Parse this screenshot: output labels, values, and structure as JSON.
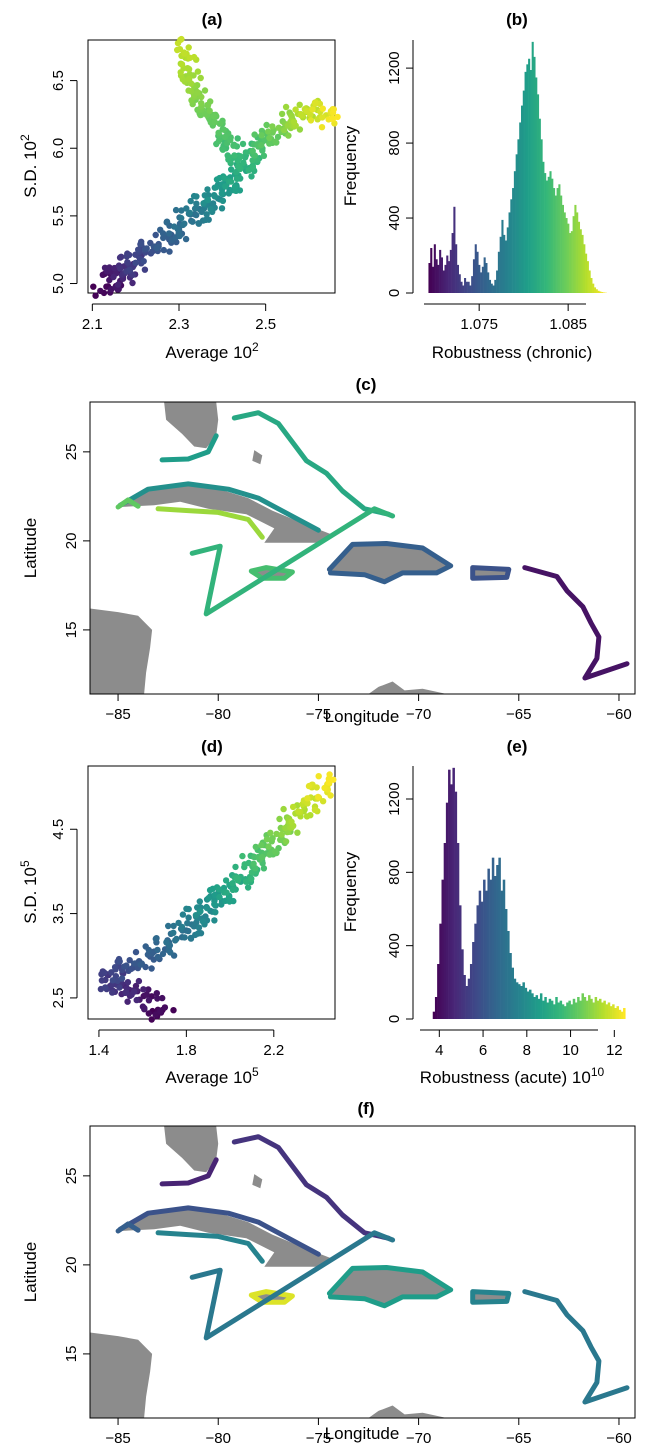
{
  "chart_data": [
    {
      "panel": "(a)",
      "type": "scatter",
      "title": "(a)",
      "xlabel": "Average 10",
      "xlabel_exp": "2",
      "ylabel": "S.D. 10",
      "ylabel_exp": "2",
      "xlim": [
        2.09,
        2.66
      ],
      "ylim": [
        4.93,
        6.8
      ],
      "xticks": [
        "2.1",
        "2.3",
        "2.5"
      ],
      "xtick_values": [
        2.1,
        2.3,
        2.5
      ],
      "yticks": [
        "5.0",
        "5.5",
        "6.0",
        "6.5"
      ],
      "ytick_values": [
        5.0,
        5.5,
        6.0,
        6.5
      ],
      "colormap": "viridis",
      "path": [
        [
          2.13,
          4.98
        ],
        [
          2.16,
          5.05
        ],
        [
          2.2,
          5.15
        ],
        [
          2.26,
          5.3
        ],
        [
          2.31,
          5.45
        ],
        [
          2.36,
          5.58
        ],
        [
          2.41,
          5.72
        ],
        [
          2.45,
          5.88
        ],
        [
          2.49,
          6.05
        ],
        [
          2.55,
          6.18
        ],
        [
          2.6,
          6.3
        ],
        [
          2.65,
          6.2
        ]
      ],
      "branch": [
        [
          2.44,
          5.9
        ],
        [
          2.4,
          6.1
        ],
        [
          2.36,
          6.3
        ],
        [
          2.33,
          6.5
        ],
        [
          2.31,
          6.78
        ]
      ],
      "color_range": [
        0.0,
        1.0
      ]
    },
    {
      "panel": "(b)",
      "type": "bar",
      "title": "(b)",
      "xlabel": "Robustness (chronic)",
      "ylabel": "Frequency",
      "xlim": [
        1.0688,
        1.0924
      ],
      "ylim": [
        0,
        1350
      ],
      "xticks": [
        "1.075",
        "1.085"
      ],
      "xtick_values": [
        1.075,
        1.085
      ],
      "yticks": [
        "0",
        "400",
        "800",
        "1200"
      ],
      "ytick_values": [
        0,
        400,
        800,
        1200
      ],
      "colormap": "viridis",
      "bin_start": 1.0693,
      "bin_width": 0.0002,
      "values": [
        160,
        240,
        140,
        260,
        180,
        150,
        230,
        190,
        120,
        150,
        200,
        170,
        230,
        320,
        460,
        260,
        150,
        100,
        60,
        40,
        80,
        60,
        60,
        40,
        90,
        180,
        260,
        220,
        150,
        110,
        140,
        190,
        160,
        110,
        70,
        50,
        40,
        70,
        120,
        220,
        300,
        390,
        310,
        280,
        350,
        430,
        500,
        560,
        650,
        740,
        820,
        910,
        1000,
        1080,
        1180,
        1220,
        1250,
        1190,
        1340,
        1260,
        1150,
        1060,
        930,
        820,
        700,
        640,
        600,
        620,
        650,
        610,
        560,
        520,
        560,
        580,
        520,
        470,
        430,
        400,
        370,
        320,
        330,
        410,
        470,
        430,
        380,
        340,
        310,
        260,
        210,
        170,
        120,
        80,
        50,
        30,
        20,
        12,
        8,
        5,
        3,
        2
      ]
    },
    {
      "panel": "(c)",
      "type": "map",
      "title": "(c)",
      "xlabel": "Longitude",
      "ylabel": "Latitude",
      "xlim": [
        -86.4,
        -59.2
      ],
      "ylim": [
        11.4,
        27.8
      ],
      "xticks": [
        "−85",
        "−80",
        "−75",
        "−70",
        "−65",
        "−60"
      ],
      "xtick_values": [
        -85,
        -80,
        -75,
        -70,
        -65,
        -60
      ],
      "yticks": [
        "15",
        "20",
        "25"
      ],
      "ytick_values": [
        15,
        20,
        25
      ],
      "land_color": "#8c8c8c",
      "reef_color_value": {
        "florida_keys": 0.55,
        "cuba_north": 0.5,
        "cuba_west": 0.75,
        "cuba_south": 0.85,
        "bahamas": 0.6,
        "jamaica": 0.7,
        "hispaniola": 0.3,
        "puerto_rico": 0.25,
        "lesser_antilles": 0.05,
        "cayman_turks": 0.65
      }
    },
    {
      "panel": "(d)",
      "type": "scatter",
      "title": "(d)",
      "xlabel": "Average 10",
      "xlabel_exp": "5",
      "ylabel": "S.D. 10",
      "ylabel_exp": "5",
      "xlim": [
        1.35,
        2.48
      ],
      "ylim": [
        2.25,
        5.25
      ],
      "xticks": [
        "1.4",
        "1.8",
        "2.2"
      ],
      "xtick_values": [
        1.4,
        1.8,
        2.2
      ],
      "yticks": [
        "2.5",
        "3.5",
        "4.5"
      ],
      "ytick_values": [
        2.5,
        3.5,
        4.5
      ],
      "colormap": "viridis",
      "path": [
        [
          1.7,
          2.35
        ],
        [
          1.55,
          2.55
        ],
        [
          1.45,
          2.7
        ],
        [
          1.6,
          2.95
        ],
        [
          1.75,
          3.2
        ],
        [
          1.85,
          3.45
        ],
        [
          1.95,
          3.7
        ],
        [
          2.05,
          3.95
        ],
        [
          2.15,
          4.2
        ],
        [
          2.25,
          4.5
        ],
        [
          2.35,
          4.8
        ],
        [
          2.44,
          5.05
        ]
      ],
      "color_range": [
        0.0,
        1.0
      ]
    },
    {
      "panel": "(e)",
      "type": "bar",
      "title": "(e)",
      "xlabel": "Robustness (acute) 10",
      "xlabel_exp": "10",
      "ylabel": "Frequency",
      "xlim": [
        3.3,
        12.9
      ],
      "ylim": [
        0,
        1380
      ],
      "xticks": [
        "4",
        "6",
        "8",
        "10",
        "12"
      ],
      "xtick_values": [
        4,
        6,
        8,
        10,
        12
      ],
      "yticks": [
        "0",
        "400",
        "800",
        "1200"
      ],
      "ytick_values": [
        0,
        400,
        800,
        1200
      ],
      "colormap": "viridis",
      "bin_start": 3.7,
      "bin_width": 0.1,
      "values": [
        40,
        120,
        300,
        520,
        760,
        960,
        1180,
        1360,
        1280,
        1370,
        1240,
        960,
        620,
        380,
        240,
        180,
        220,
        300,
        420,
        520,
        620,
        700,
        640,
        760,
        700,
        820,
        760,
        880,
        780,
        840,
        880,
        700,
        760,
        600,
        480,
        360,
        280,
        220,
        200,
        190,
        180,
        200,
        170,
        150,
        160,
        140,
        120,
        130,
        110,
        140,
        100,
        120,
        90,
        110,
        100,
        80,
        120,
        90,
        100,
        80,
        70,
        90,
        100,
        80,
        110,
        90,
        120,
        100,
        140,
        120,
        100,
        130,
        110,
        90,
        120,
        100,
        110,
        90,
        100,
        80,
        90,
        70,
        80,
        60,
        70,
        50,
        40,
        60
      ]
    },
    {
      "panel": "(f)",
      "type": "map",
      "title": "(f)",
      "xlabel": "Longitude",
      "ylabel": "Latitude",
      "xlim": [
        -86.4,
        -59.2
      ],
      "ylim": [
        11.4,
        27.8
      ],
      "xticks": [
        "−85",
        "−80",
        "−75",
        "−70",
        "−65",
        "−60"
      ],
      "xtick_values": [
        -85,
        -80,
        -75,
        -70,
        -65,
        -60
      ],
      "yticks": [
        "15",
        "20",
        "25"
      ],
      "ytick_values": [
        15,
        20,
        25
      ],
      "land_color": "#8c8c8c",
      "reef_color_value": {
        "florida_keys": 0.1,
        "cuba_north": 0.25,
        "cuba_west": 0.3,
        "cuba_south": 0.45,
        "bahamas": 0.15,
        "jamaica": 0.95,
        "hispaniola": 0.55,
        "puerto_rico": 0.45,
        "lesser_antilles": 0.4,
        "cayman_turks": 0.4
      }
    }
  ]
}
